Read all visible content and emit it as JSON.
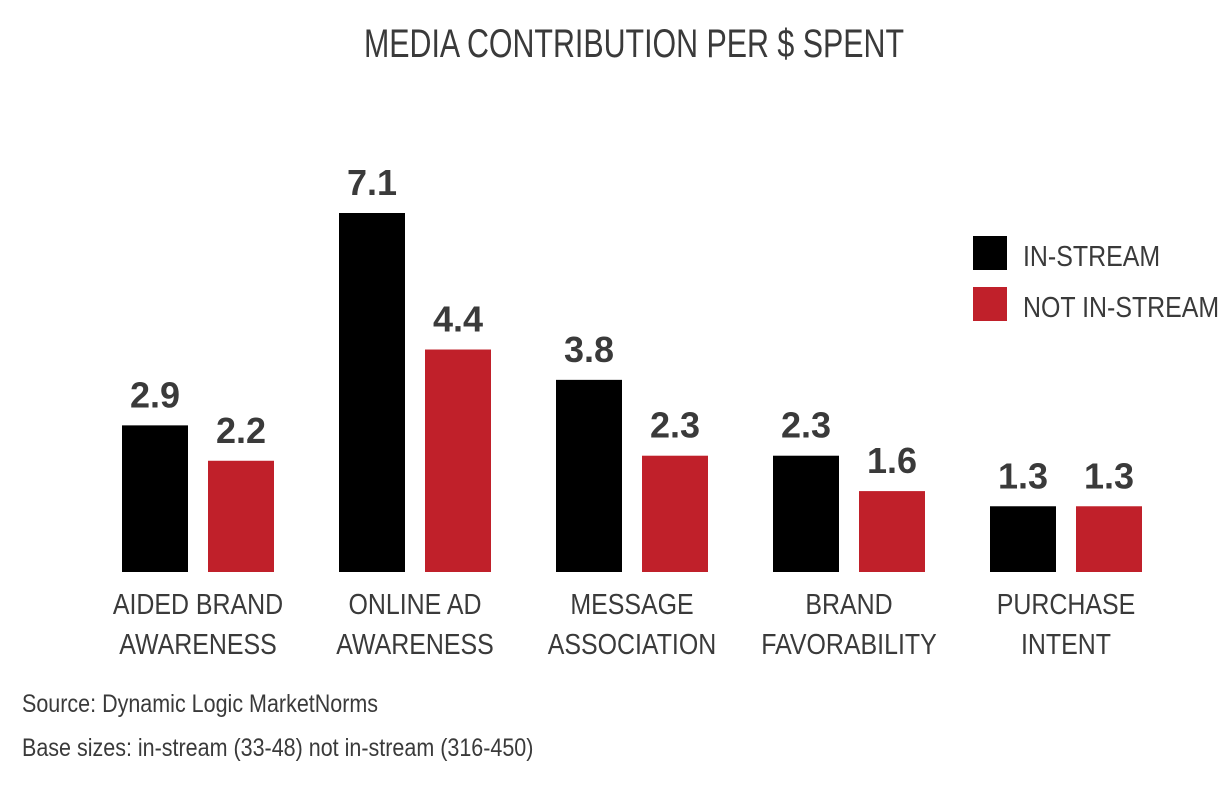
{
  "chart_data": {
    "type": "bar",
    "title": "MEDIA CONTRIBUTION PER $ SPENT",
    "categories": [
      [
        "AIDED BRAND",
        "AWARENESS"
      ],
      [
        "ONLINE AD",
        "AWARENESS"
      ],
      [
        "MESSAGE",
        "ASSOCIATION"
      ],
      [
        "BRAND",
        "FAVORABILITY"
      ],
      [
        "PURCHASE",
        "INTENT"
      ]
    ],
    "series": [
      {
        "name": "IN-STREAM",
        "color": "#000000",
        "values": [
          2.9,
          7.1,
          3.8,
          2.3,
          1.3
        ]
      },
      {
        "name": "NOT IN-STREAM",
        "color": "#c0202a",
        "values": [
          2.2,
          4.4,
          2.3,
          1.6,
          1.3
        ]
      }
    ],
    "ylim": [
      0,
      7.1
    ],
    "legend_position": "top-right",
    "grid": false,
    "xlabel": "",
    "ylabel": ""
  },
  "notes": {
    "source": "Source: Dynamic Logic MarketNorms",
    "base_sizes": "Base sizes: in-stream (33-48) not in-stream (316-450)"
  }
}
